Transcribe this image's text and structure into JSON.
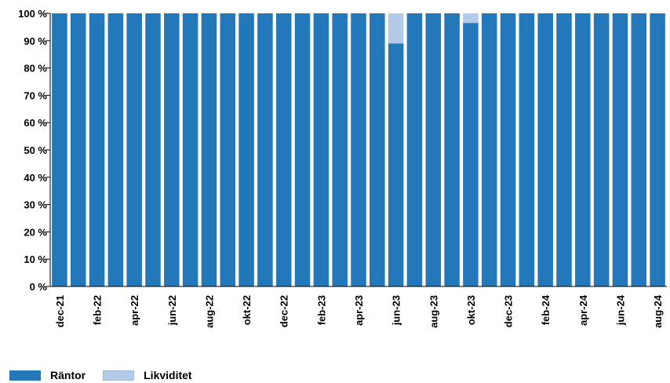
{
  "chart_data": {
    "type": "bar",
    "stacked": true,
    "categories": [
      "dec-21",
      "jan-22",
      "feb-22",
      "mar-22",
      "apr-22",
      "maj-22",
      "jun-22",
      "jul-22",
      "aug-22",
      "sep-22",
      "okt-22",
      "nov-22",
      "dec-22",
      "jan-23",
      "feb-23",
      "mar-23",
      "apr-23",
      "maj-23",
      "jun-23",
      "jul-23",
      "aug-23",
      "sep-23",
      "okt-23",
      "nov-23",
      "dec-23",
      "jan-24",
      "feb-24",
      "mar-24",
      "apr-24",
      "maj-24",
      "jun-24",
      "jul-24",
      "aug-24"
    ],
    "tick_labels": [
      "dec-21",
      "feb-22",
      "apr-22",
      "jun-22",
      "aug-22",
      "okt-22",
      "dec-22",
      "feb-23",
      "apr-23",
      "jun-23",
      "aug-23",
      "okt-23",
      "dec-23",
      "feb-24",
      "apr-24",
      "jun-24",
      "aug-24"
    ],
    "series": [
      {
        "name": "Räntor",
        "color": "#2278b8",
        "values": [
          100,
          100,
          100,
          100,
          100,
          100,
          100,
          100,
          100,
          100,
          100,
          100,
          100,
          100,
          100,
          100,
          100,
          100,
          89,
          100,
          100,
          100,
          96.5,
          100,
          100,
          100,
          100,
          100,
          100,
          100,
          100,
          100,
          100
        ]
      },
      {
        "name": "Likviditet",
        "color": "#b4cbe8",
        "values": [
          0,
          0,
          0,
          0,
          0,
          0,
          0,
          0,
          0,
          0,
          0,
          0,
          0,
          0,
          0,
          0,
          0,
          0,
          11,
          0,
          0,
          0,
          3.5,
          0,
          0,
          0,
          0,
          0,
          0,
          0,
          0,
          0,
          0
        ]
      }
    ],
    "ylim": [
      0,
      100
    ],
    "yticks": [
      "0 %",
      "10 %",
      "20 %",
      "30 %",
      "40 %",
      "50 %",
      "60 %",
      "70 %",
      "80 %",
      "90 %",
      "100 %"
    ],
    "grid": false,
    "legend_position": "bottom-left"
  }
}
